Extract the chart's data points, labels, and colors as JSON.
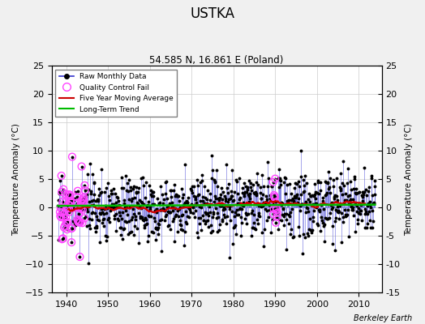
{
  "title": "USTKA",
  "subtitle": "54.585 N, 16.861 E (Poland)",
  "ylabel": "Temperature Anomaly (°C)",
  "xlabel_bottom": "Berkeley Earth",
  "xlim": [
    1936.5,
    2015.5
  ],
  "ylim": [
    -15,
    25
  ],
  "yticks": [
    -15,
    -10,
    -5,
    0,
    5,
    10,
    15,
    20,
    25
  ],
  "xticks": [
    1940,
    1950,
    1960,
    1970,
    1980,
    1990,
    2000,
    2010
  ],
  "seed": 17,
  "start_year": 1938,
  "end_year": 2013,
  "trend_value": 0.5,
  "raw_std": 2.8,
  "colors": {
    "raw_line": "#3333cc",
    "raw_dot": "#000000",
    "stem": "#6666dd",
    "qc": "#ff44ff",
    "moving_avg": "#cc0000",
    "trend": "#00bb00",
    "grid": "#cccccc",
    "background": "#f0f0f0",
    "plot_bg": "#ffffff"
  },
  "legend_loc": "upper left"
}
